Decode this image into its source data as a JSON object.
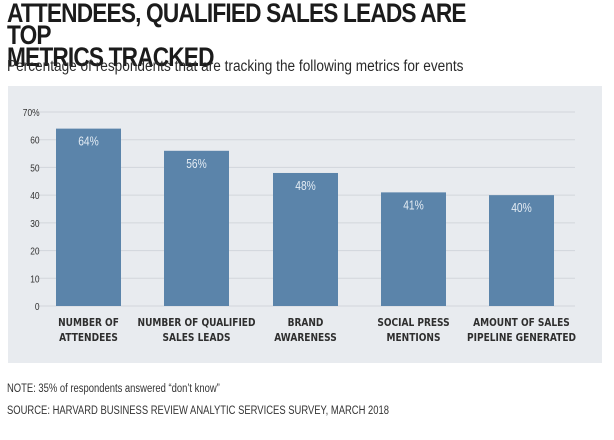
{
  "chart_data": {
    "type": "bar",
    "title": "ATTENDEES, QUALIFIED SALES LEADS ARE TOP METRICS TRACKED",
    "title_lines": [
      "ATTENDEES, QUALIFIED SALES LEADS ARE TOP",
      "METRICS TRACKED"
    ],
    "subtitle": "Percentage of respondents that are tracking the following metrics for events",
    "xlabel": "",
    "ylabel": "",
    "ylim": [
      0,
      70
    ],
    "yticks": [
      0,
      10,
      20,
      30,
      40,
      50,
      60,
      70
    ],
    "ytick_labels": [
      "0",
      "10",
      "20",
      "30",
      "40",
      "50",
      "60",
      "70%"
    ],
    "grid": true,
    "categories": [
      [
        "NUMBER OF",
        "ATTENDEES"
      ],
      [
        "NUMBER OF QUALIFIED",
        "SALES LEADS"
      ],
      [
        "BRAND",
        "AWARENESS"
      ],
      [
        "SOCIAL PRESS",
        "MENTIONS"
      ],
      [
        "AMOUNT OF SALES",
        "PIPELINE GENERATED"
      ]
    ],
    "values": [
      64,
      56,
      48,
      41,
      40
    ],
    "data_labels": [
      "64%",
      "56%",
      "48%",
      "41%",
      "40%"
    ],
    "bar_color": "#5b84aa",
    "label_color": "#e4ecf4",
    "note": "NOTE: 35% of respondents answered “don’t know”",
    "source": "SOURCE: HARVARD BUSINESS REVIEW ANALYTIC SERVICES SURVEY, MARCH 2018"
  }
}
